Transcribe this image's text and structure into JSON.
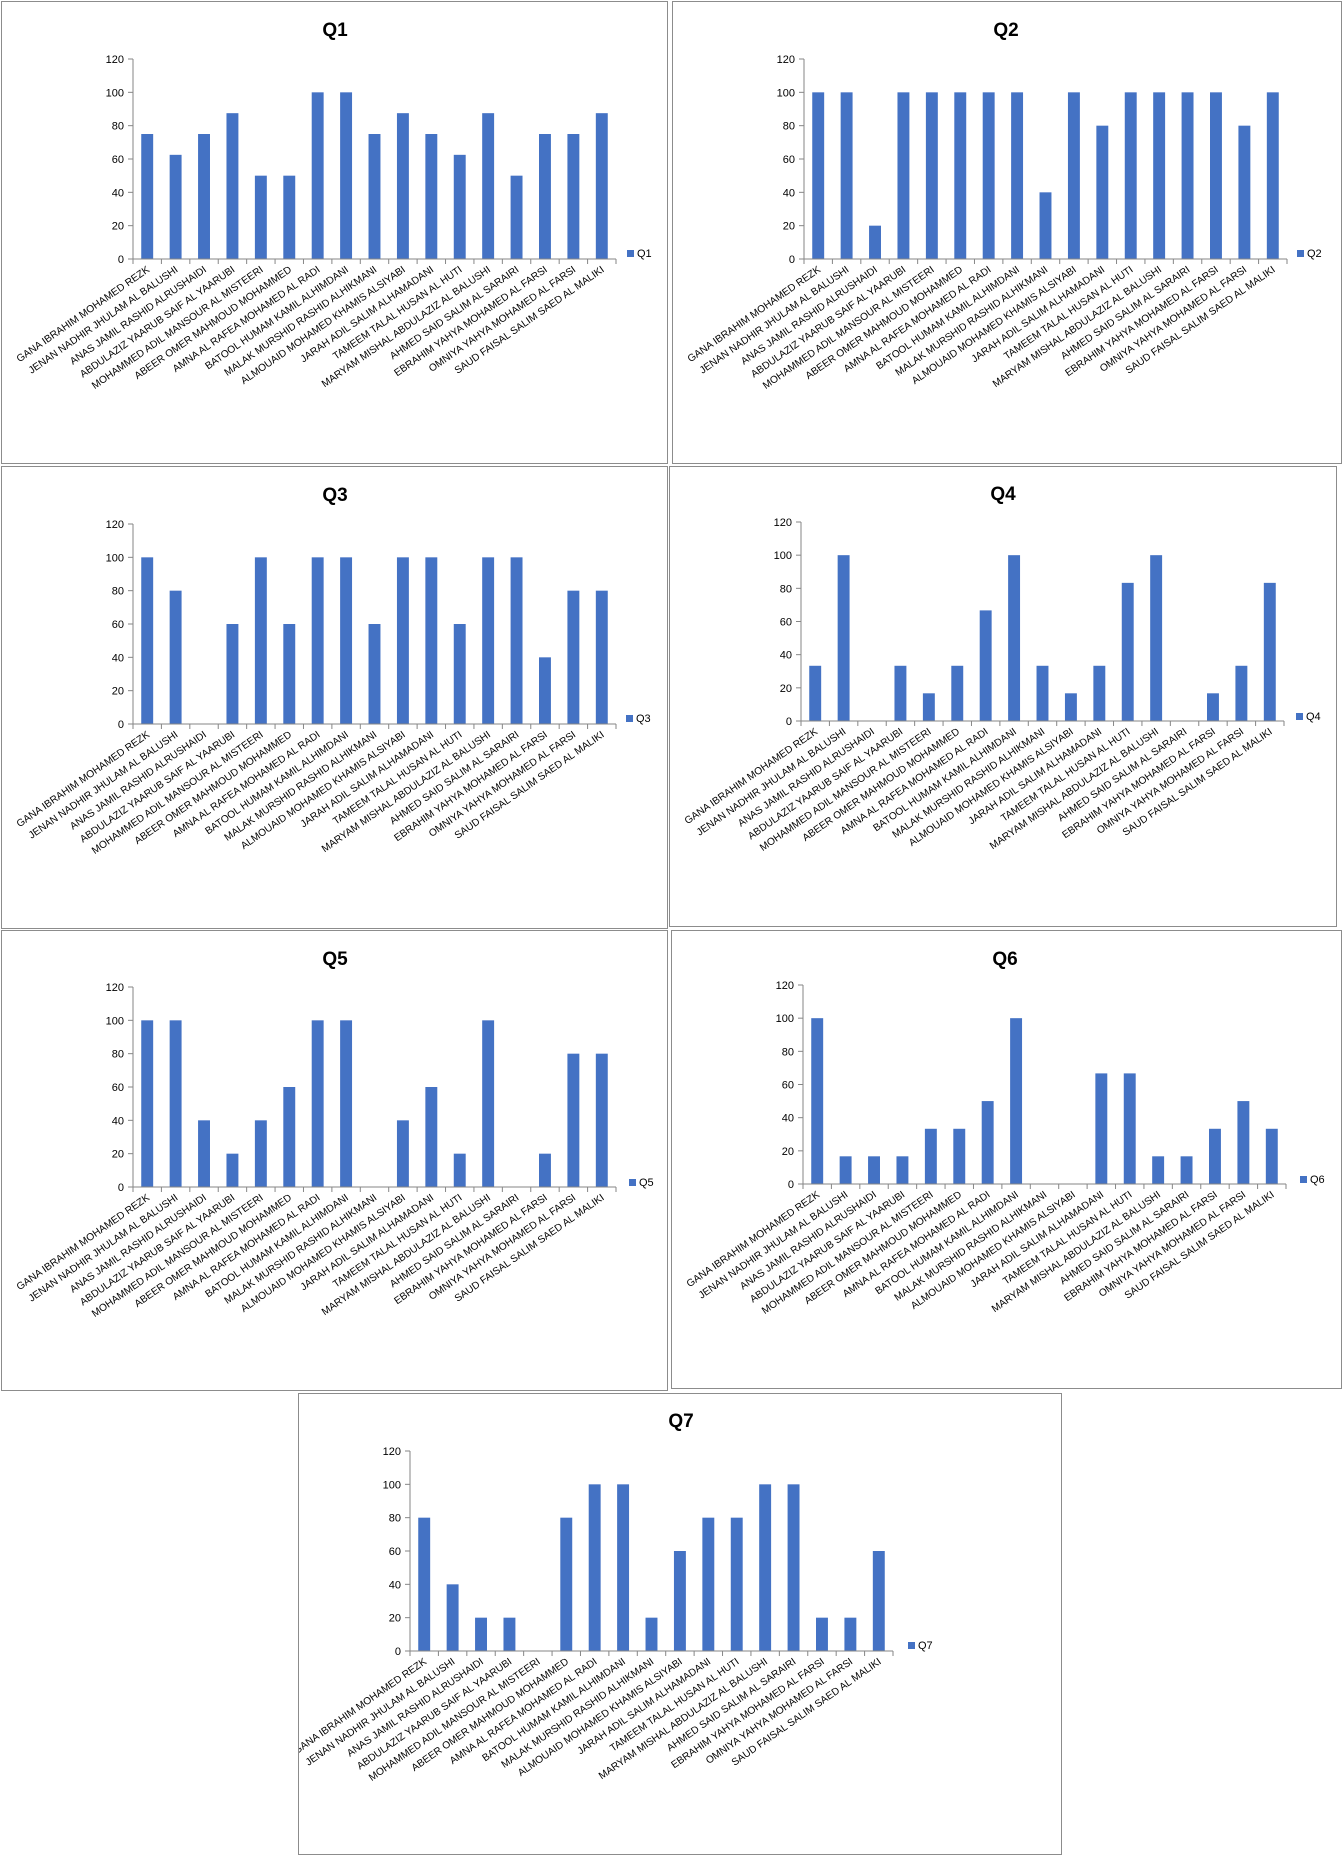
{
  "categories": [
    "GANA IBRAHIM MOHAMED REZK",
    "JENAN NADHIR JHULAM AL BALUSHI",
    "ANAS JAMIL RASHID ALRUSHAIDI",
    "ABDULAZIZ YAARUB SAIF AL YAARUBI",
    "MOHAMMED ADIL MANSOUR AL MISTEERI",
    "ABEER OMER MAHMOUD MOHAMMED",
    "AMNA AL RAFEA MOHAMED AL RADI",
    "BATOOL HUMAM KAMIL ALHIMDANI",
    "MALAK MURSHID RASHID ALHIKMANI",
    "ALMOUAID MOHAMED KHAMIS ALSIYABI",
    "JARAH ADIL SALIM ALHAMADANI",
    "TAMEEM TALAL HUSAN AL HUTI",
    "MARYAM MISHAL ABDULAZIZ AL BALUSHI",
    "AHMED SAID SALIM AL SARAIRI",
    "EBRAHIM YAHYA MOHAMED AL FARSI",
    "OMNIYA YAHYA MOHAMED AL FARSI",
    "SAUD FAISAL SALIM SAED AL MALIKI"
  ],
  "colors": {
    "bar": "#4472c4",
    "axis": "#868686",
    "border": "#8c8c8c"
  },
  "chart_data": [
    {
      "type": "bar",
      "title": "Q1",
      "legend": "Q1",
      "legend_position": "right",
      "grid": false,
      "ylim": [
        0,
        120
      ],
      "yticks": [
        0,
        20,
        40,
        60,
        80,
        100,
        120
      ],
      "values": [
        75,
        62.5,
        75,
        87.5,
        50,
        50,
        100,
        100,
        75,
        87.5,
        75,
        62.5,
        87.5,
        50,
        75,
        75,
        87.5
      ]
    },
    {
      "type": "bar",
      "title": "Q2",
      "legend": "Q2",
      "legend_position": "right",
      "grid": false,
      "ylim": [
        0,
        120
      ],
      "yticks": [
        0,
        20,
        40,
        60,
        80,
        100,
        120
      ],
      "values": [
        100,
        100,
        20,
        100,
        100,
        100,
        100,
        100,
        40,
        100,
        80,
        100,
        100,
        100,
        100,
        80,
        100
      ]
    },
    {
      "type": "bar",
      "title": "Q3",
      "legend": "Q3",
      "legend_position": "right",
      "grid": false,
      "ylim": [
        0,
        120
      ],
      "yticks": [
        0,
        20,
        40,
        60,
        80,
        100,
        120
      ],
      "values": [
        100,
        80,
        0,
        60,
        100,
        60,
        100,
        100,
        60,
        100,
        100,
        60,
        100,
        100,
        40,
        80,
        80
      ]
    },
    {
      "type": "bar",
      "title": "Q4",
      "legend": "Q4",
      "legend_position": "right",
      "grid": false,
      "ylim": [
        0,
        120
      ],
      "yticks": [
        0,
        20,
        40,
        60,
        80,
        100,
        120
      ],
      "values": [
        33.3,
        100,
        0,
        33.3,
        16.7,
        33.3,
        66.7,
        100,
        33.3,
        16.7,
        33.3,
        83.3,
        100,
        0,
        16.7,
        33.3,
        83.3
      ]
    },
    {
      "type": "bar",
      "title": "Q5",
      "legend": "Q5",
      "legend_position": "right",
      "grid": false,
      "ylim": [
        0,
        120
      ],
      "yticks": [
        0,
        20,
        40,
        60,
        80,
        100,
        120
      ],
      "values": [
        100,
        100,
        40,
        20,
        40,
        60,
        100,
        100,
        0,
        40,
        60,
        20,
        100,
        0,
        20,
        80,
        80
      ]
    },
    {
      "type": "bar",
      "title": "Q6",
      "legend": "Q6",
      "legend_position": "right",
      "grid": false,
      "ylim": [
        0,
        120
      ],
      "yticks": [
        0,
        20,
        40,
        60,
        80,
        100,
        120
      ],
      "values": [
        100,
        16.7,
        16.7,
        16.7,
        33.3,
        33.3,
        50,
        100,
        0,
        0,
        66.7,
        66.7,
        16.7,
        16.7,
        33.3,
        50,
        33.3
      ]
    },
    {
      "type": "bar",
      "title": "Q7",
      "legend": "Q7",
      "legend_position": "right",
      "grid": false,
      "ylim": [
        0,
        120
      ],
      "yticks": [
        0,
        20,
        40,
        60,
        80,
        100,
        120
      ],
      "values": [
        80,
        40,
        20,
        20,
        0,
        80,
        100,
        100,
        20,
        60,
        80,
        80,
        100,
        100,
        20,
        20,
        60
      ]
    }
  ]
}
